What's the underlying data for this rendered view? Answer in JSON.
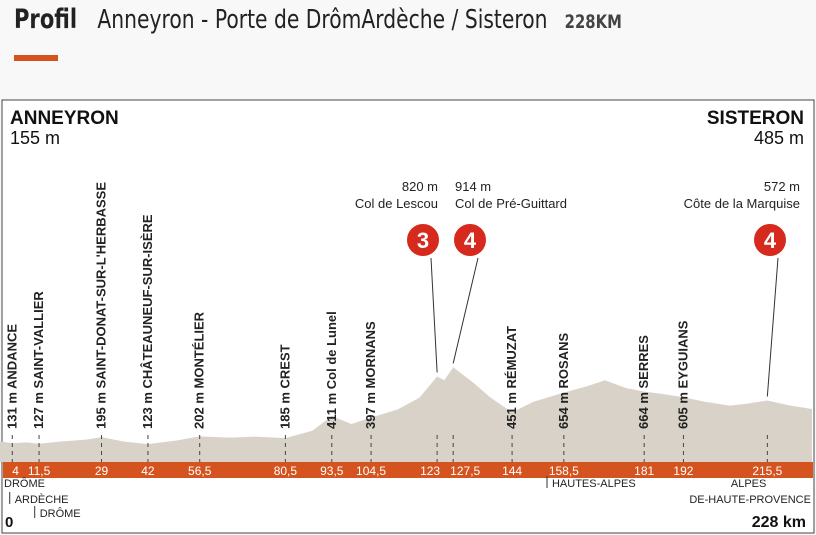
{
  "header": {
    "title": "Profil",
    "route": "Anneyron - Porte de DrômArdèche / Sisteron",
    "distance": "228KM"
  },
  "colors": {
    "accent": "#d4531f",
    "terrain": "#d9d2c8",
    "climb_badge": "#d62a1e"
  },
  "chart_data": {
    "type": "area",
    "start": {
      "name": "ANNEYRON",
      "alt": "155 m"
    },
    "finish": {
      "name": "SISTERON",
      "alt": "485 m"
    },
    "xlim": [
      0,
      228
    ],
    "start_km": "0",
    "finish_km": "228 km",
    "profile": [
      [
        0,
        155
      ],
      [
        4,
        131
      ],
      [
        8,
        140
      ],
      [
        11.5,
        127
      ],
      [
        18,
        150
      ],
      [
        25,
        170
      ],
      [
        29,
        195
      ],
      [
        35,
        150
      ],
      [
        42,
        123
      ],
      [
        50,
        160
      ],
      [
        56.5,
        202
      ],
      [
        65,
        190
      ],
      [
        72,
        200
      ],
      [
        80.5,
        185
      ],
      [
        88,
        260
      ],
      [
        93.5,
        411
      ],
      [
        99,
        330
      ],
      [
        104.5,
        397
      ],
      [
        112,
        480
      ],
      [
        118,
        600
      ],
      [
        123,
        820
      ],
      [
        125,
        780
      ],
      [
        127.5,
        914
      ],
      [
        133,
        760
      ],
      [
        138,
        600
      ],
      [
        144,
        451
      ],
      [
        150,
        560
      ],
      [
        158.5,
        654
      ],
      [
        165,
        720
      ],
      [
        170,
        780
      ],
      [
        176,
        700
      ],
      [
        181,
        664
      ],
      [
        186,
        640
      ],
      [
        192,
        605
      ],
      [
        198,
        560
      ],
      [
        205,
        520
      ],
      [
        210,
        540
      ],
      [
        215.5,
        572
      ],
      [
        222,
        520
      ],
      [
        228,
        485
      ]
    ],
    "km_markers": [
      "4",
      "11,5",
      "29",
      "42",
      "56,5",
      "80,5",
      "93,5",
      "104,5",
      "123",
      "127,5",
      "144",
      "158,5",
      "181",
      "192",
      "215,5"
    ],
    "km_values": [
      4,
      11.5,
      29,
      42,
      56.5,
      80.5,
      93.5,
      104.5,
      123,
      127.5,
      144,
      158.5,
      181,
      192,
      215.5
    ],
    "places": [
      {
        "km": 4,
        "label": "131 m ANDANCE"
      },
      {
        "km": 11.5,
        "label": "127 m SAINT-VALLIER"
      },
      {
        "km": 29,
        "label": "195 m SAINT-DONAT-SUR-L'HERBASSE"
      },
      {
        "km": 42,
        "label": "123 m CHÂTEAUNEUF-SUR-ISÈRE"
      },
      {
        "km": 56.5,
        "label": "202 m MONTÉLIER"
      },
      {
        "km": 80.5,
        "label": "185 m CREST"
      },
      {
        "km": 93.5,
        "label": "411 m Col de Lunel"
      },
      {
        "km": 104.5,
        "label": "397 m MORNANS"
      },
      {
        "km": 144,
        "label": "451 m RÉMUZAT"
      },
      {
        "km": 158.5,
        "label": "654 m ROSANS"
      },
      {
        "km": 181,
        "label": "664 m SERRES"
      },
      {
        "km": 192,
        "label": "605 m EYGUIANS"
      }
    ],
    "climbs": [
      {
        "km": 123,
        "alt": "820 m",
        "name": "Col de Lescou",
        "category": "3"
      },
      {
        "km": 127.5,
        "alt": "914 m",
        "name": "Col de Pré-Guittard",
        "category": "4"
      },
      {
        "km": 215.5,
        "alt": "572 m",
        "name": "Côte de la Marquise",
        "category": "4"
      }
    ],
    "regions": [
      {
        "km": 0,
        "label": "DRÔME",
        "row": 1
      },
      {
        "km": 3,
        "label": "ARDÈCHE",
        "row": 2
      },
      {
        "km": 10,
        "label": "DRÔME",
        "row": 3
      },
      {
        "km": 153.5,
        "label": "HAUTES-ALPES",
        "row": 1
      },
      {
        "km": 215.5,
        "label": "ALPES",
        "row": 1,
        "align": "end"
      },
      {
        "km": 228,
        "label": "DE-HAUTE-PROVENCE",
        "row": 2,
        "align": "end"
      }
    ]
  }
}
